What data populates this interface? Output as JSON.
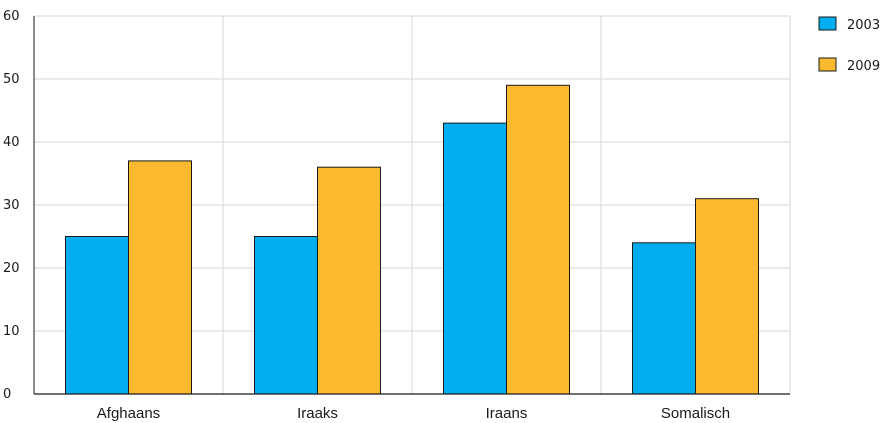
{
  "chart_data": {
    "type": "bar",
    "categories": [
      "Afghaans",
      "Iraaks",
      "Iraans",
      "Somalisch"
    ],
    "series": [
      {
        "name": "2003",
        "color": "#00aeef",
        "values": [
          25,
          25,
          43,
          24
        ]
      },
      {
        "name": "2009",
        "color": "#fbb92f",
        "values": [
          37,
          36,
          49,
          31
        ]
      }
    ],
    "title": "",
    "xlabel": "",
    "ylabel": "",
    "ylim": [
      0,
      60
    ],
    "yticks": [
      0,
      10,
      20,
      30,
      40,
      50,
      60
    ],
    "grid": true,
    "legend": "top-right"
  }
}
